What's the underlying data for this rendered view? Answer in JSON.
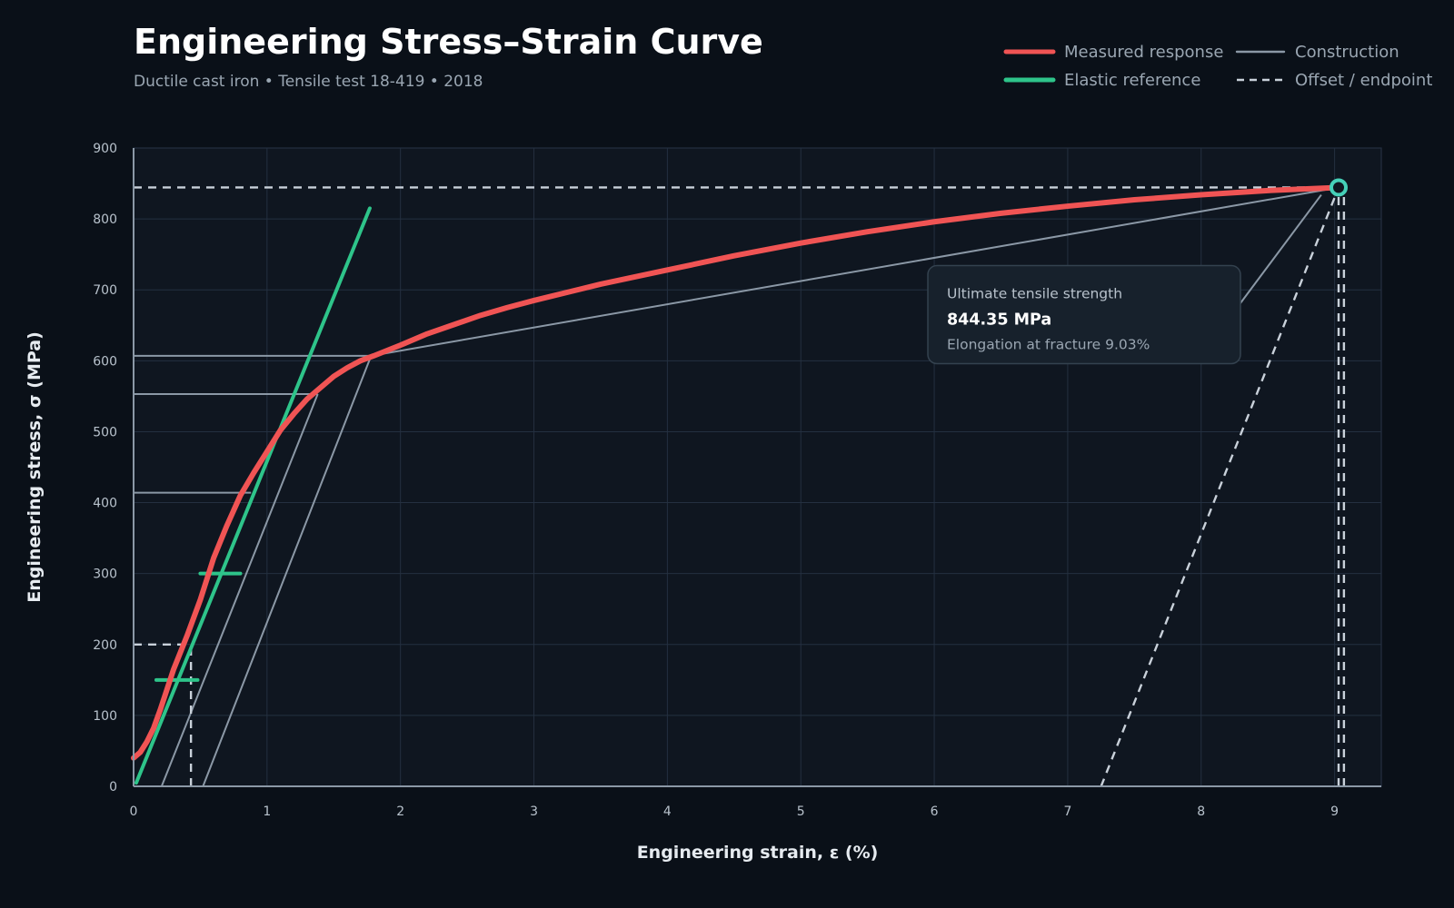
{
  "colors": {
    "background": "#0a1018",
    "plot_bg": "#0f1620",
    "grid": "#243040",
    "axis": "#8b98a6",
    "measured": "#f05454",
    "elastic": "#2ec48a",
    "construction": "#8b98a6",
    "dashed": "#c9d1da",
    "uts_marker": "#45d0b8",
    "callout_bg": "#17212c",
    "callout_border": "#34424f"
  },
  "chart_data": {
    "type": "line",
    "title": "Engineering Stress–Strain Curve",
    "subtitle": "Ductile cast iron • Tensile test 18-419 • 2018",
    "xlabel": "Engineering strain, ε (%)",
    "ylabel": "Engineering stress, σ (MPa)",
    "xlim": [
      0,
      9.35
    ],
    "ylim": [
      0,
      900
    ],
    "x_ticks": [
      "0",
      "1",
      "2",
      "3",
      "4",
      "5",
      "6",
      "7",
      "8",
      "9"
    ],
    "y_ticks": [
      "0",
      "100",
      "200",
      "300",
      "400",
      "500",
      "600",
      "700",
      "800",
      "900"
    ],
    "grid": true,
    "legend_position": "top-right",
    "legend": [
      {
        "label": "Measured response",
        "style": "thick-solid",
        "color": "#f05454"
      },
      {
        "label": "Construction",
        "style": "solid",
        "color": "#8b98a6"
      },
      {
        "label": "Elastic reference",
        "style": "thick-solid",
        "color": "#2ec48a"
      },
      {
        "label": "Offset / endpoint",
        "style": "dashed",
        "color": "#c9d1da"
      }
    ],
    "series": [
      {
        "name": "Measured response",
        "color": "#f05454",
        "x": [
          0,
          0.05,
          0.1,
          0.15,
          0.2,
          0.3,
          0.4,
          0.5,
          0.6,
          0.7,
          0.8,
          0.9,
          1.0,
          1.1,
          1.2,
          1.3,
          1.4,
          1.5,
          1.6,
          1.7,
          1.8,
          2.0,
          2.2,
          2.4,
          2.6,
          2.8,
          3.0,
          3.5,
          4.0,
          4.5,
          5.0,
          5.5,
          6.0,
          6.5,
          7.0,
          7.5,
          8.0,
          8.5,
          9.03
        ],
        "y": [
          40,
          48,
          63,
          82,
          108,
          165,
          212,
          263,
          322,
          368,
          410,
          442,
          472,
          502,
          525,
          546,
          562,
          578,
          590,
          600,
          607,
          622,
          638,
          651,
          664,
          675,
          685,
          708,
          728,
          748,
          766,
          782,
          796,
          808,
          818,
          827,
          834,
          840,
          844.35
        ]
      },
      {
        "name": "Elastic reference",
        "color": "#2ec48a",
        "x": [
          0.02,
          1.77
        ],
        "y": [
          5,
          815
        ]
      }
    ],
    "construction_lines": [
      {
        "x": [
          0,
          0.88
        ],
        "y": [
          414,
          414
        ]
      },
      {
        "x": [
          0,
          1.38
        ],
        "y": [
          553,
          553
        ]
      },
      {
        "x": [
          0,
          1.78
        ],
        "y": [
          607,
          607
        ]
      },
      {
        "x": [
          0.21,
          1.38
        ],
        "y": [
          0,
          553
        ]
      },
      {
        "x": [
          0.52,
          1.78
        ],
        "y": [
          0,
          607
        ]
      },
      {
        "x": [
          1.78,
          9.03
        ],
        "y": [
          607,
          844.35
        ]
      },
      {
        "x": [
          8.9,
          8.25
        ],
        "y": [
          834,
          670
        ]
      }
    ],
    "elastic_ticks": [
      {
        "x": [
          0.5,
          0.8
        ],
        "y": [
          300,
          300
        ]
      },
      {
        "x": [
          0.17,
          0.48
        ],
        "y": [
          150,
          150
        ]
      }
    ],
    "dashed_lines": [
      {
        "x": [
          0,
          9.03
        ],
        "y": [
          844.35,
          844.35
        ]
      },
      {
        "x": [
          0,
          0.43
        ],
        "y": [
          200,
          200
        ]
      },
      {
        "x": [
          0.43,
          0.43
        ],
        "y": [
          0,
          200
        ]
      },
      {
        "x": [
          7.25,
          9.0
        ],
        "y": [
          0,
          830
        ]
      },
      {
        "x": [
          9.03,
          9.03
        ],
        "y": [
          0,
          844.35
        ]
      },
      {
        "x": [
          9.07,
          9.07
        ],
        "y": [
          0,
          844.35
        ]
      }
    ],
    "uts_point": {
      "x": 9.03,
      "y": 844.35
    },
    "annotation": {
      "label": "Ultimate tensile strength",
      "value": "844.35 MPa",
      "detail": "Elongation at fracture 9.03%"
    }
  }
}
